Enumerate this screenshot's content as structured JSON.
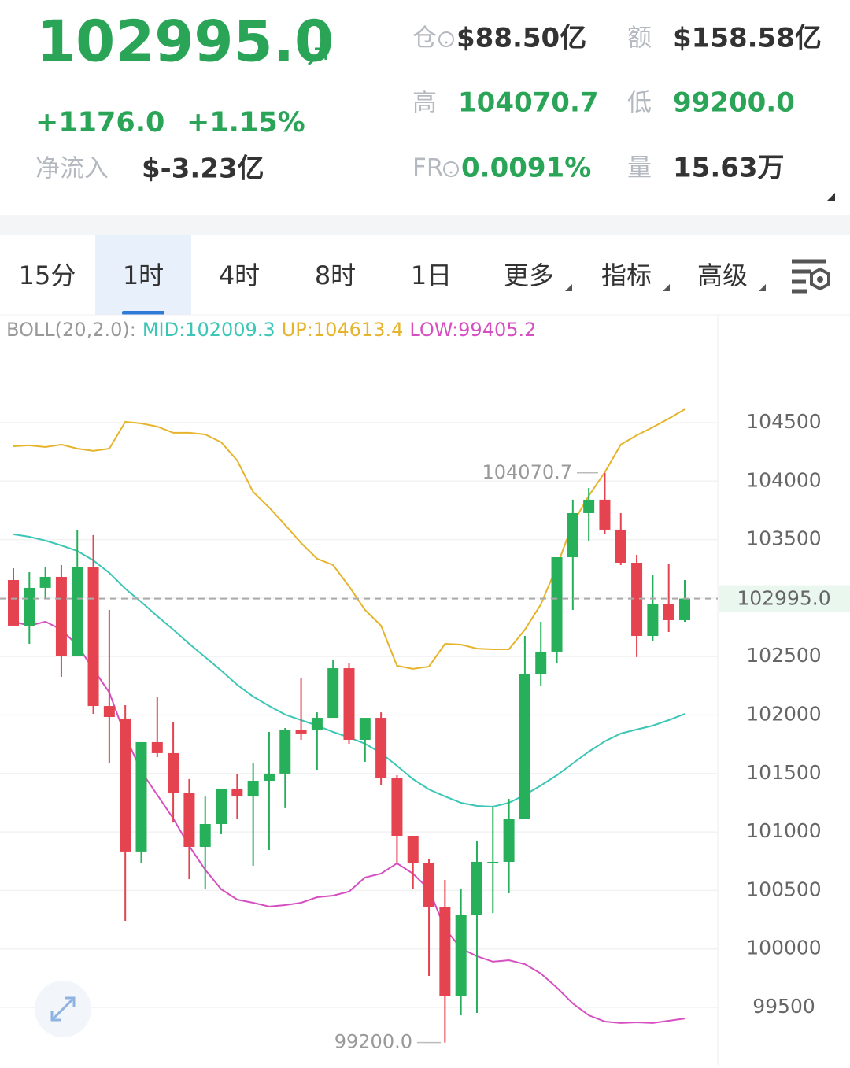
{
  "header": {
    "price": "102995.0",
    "change": "+1176.0",
    "change_pct": "+1.15%",
    "net_inflow_label": "净流入",
    "net_inflow": "$-3.23亿",
    "stats": [
      {
        "label": "仓",
        "value": "$88.50亿"
      },
      {
        "label": "额",
        "value": "$158.58亿"
      },
      {
        "label": "高",
        "value": "104070.7"
      },
      {
        "label": "低",
        "value": "99200.0"
      },
      {
        "label": "FR",
        "value": "0.0091%"
      },
      {
        "label": "量",
        "value": "15.63万"
      }
    ]
  },
  "tabs": [
    "15分",
    "1时",
    "4时",
    "8时",
    "1日",
    "更多",
    "指标",
    "高级"
  ],
  "selected_tab": 1,
  "chart_data": {
    "type": "candlestick",
    "up_color": "#27b05a",
    "down_color": "#e4434f",
    "ylim": [
      99050,
      105250
    ],
    "yticks": [
      104500,
      104000,
      103500,
      103000,
      102500,
      102000,
      101500,
      101000,
      100500,
      100000,
      99500
    ],
    "grid": true,
    "series": [
      {
        "open": [
          103154,
          102764,
          103087,
          103181,
          102508,
          103268,
          102077,
          101970,
          100833,
          101768,
          101674,
          101337,
          100873,
          101068,
          101371,
          101303,
          101438,
          101499,
          101869,
          101869,
          101976,
          102400,
          101788,
          101976,
          101465,
          100967,
          100732,
          100361,
          99601,
          100294,
          100732,
          100745,
          101115,
          102347,
          102542,
          103349,
          103726,
          103841,
          103585,
          103302,
          102676,
          102952,
          102811
        ],
        "close": [
          102764,
          103087,
          103181,
          102508,
          103268,
          102077,
          101983,
          100833,
          101768,
          101674,
          101337,
          100873,
          101068,
          101371,
          101303,
          101438,
          101499,
          101869,
          101842,
          101976,
          102400,
          101788,
          101976,
          101465,
          100967,
          100732,
          100361,
          99601,
          100294,
          100745,
          100745,
          101115,
          102347,
          102542,
          103349,
          103726,
          103841,
          103585,
          103302,
          102676,
          102952,
          102811,
          102995
        ],
        "high": [
          103255,
          103221,
          103268,
          103282,
          103578,
          103538,
          102898,
          102084,
          101768,
          102158,
          101936,
          101452,
          101303,
          101371,
          101492,
          101586,
          101855,
          101889,
          102313,
          102023,
          102474,
          102447,
          101976,
          102023,
          101485,
          100967,
          100770,
          100590,
          100510,
          100927,
          101216,
          101283,
          102676,
          102797,
          103349,
          103841,
          103941,
          104070.7,
          103726,
          103369,
          103201,
          103289,
          103154
        ],
        "low": [
          102764,
          102609,
          102999,
          102326,
          102508,
          102010,
          101586,
          100240,
          100732,
          101640,
          101081,
          100597,
          100510,
          100981,
          101115,
          100711,
          100846,
          101203,
          101788,
          101532,
          101976,
          101754,
          101600,
          101398,
          100732,
          100510,
          99769,
          99200,
          99433,
          99453,
          100307,
          100476,
          101115,
          102246,
          102441,
          102898,
          103484,
          103551,
          103282,
          102495,
          102629,
          102710,
          102797
        ]
      }
    ],
    "bollinger": {
      "label": "BOLL(20,2.0):",
      "lines": [
        {
          "legend": "MID:102009.3",
          "color": "#3cc6b6",
          "values": [
            103545,
            103524,
            103491,
            103450,
            103403,
            103322,
            103215,
            103080,
            102966,
            102845,
            102730,
            102609,
            102495,
            102380,
            102259,
            102158,
            102077,
            102004,
            101956,
            101909,
            101855,
            101808,
            101755,
            101674,
            101566,
            101452,
            101364,
            101304,
            101250,
            101223,
            101216,
            101250,
            101317,
            101398,
            101485,
            101586,
            101687,
            101775,
            101842,
            101876,
            101909,
            101956,
            102009.3
          ]
        },
        {
          "legend": "UP:104613.4",
          "color": "#e6b42c",
          "values": [
            104298,
            104305,
            104291,
            104312,
            104278,
            104258,
            104278,
            104507,
            104493,
            104466,
            104413,
            104413,
            104399,
            104332,
            104177,
            103908,
            103773,
            103625,
            103470,
            103336,
            103282,
            103100,
            102898,
            102764,
            102421,
            102394,
            102414,
            102609,
            102602,
            102568,
            102562,
            102562,
            102730,
            102946,
            103269,
            103639,
            103874,
            104076,
            104312,
            104392,
            104460,
            104534,
            104613.4
          ]
        },
        {
          "legend": "LOW:99405.2",
          "color": "#d64fc0",
          "values": [
            102798,
            102764,
            102798,
            102730,
            102596,
            102394,
            102192,
            101822,
            101519,
            101317,
            101115,
            100880,
            100678,
            100510,
            100422,
            100395,
            100362,
            100375,
            100395,
            100442,
            100456,
            100490,
            100611,
            100644,
            100732,
            100644,
            100510,
            100173,
            100005,
            99938,
            99891,
            99904,
            99870,
            99790,
            99669,
            99534,
            99433,
            99379,
            99366,
            99372,
            99366,
            99386,
            99405.2
          ]
        }
      ]
    },
    "annotations": [
      {
        "value": 104070.7,
        "label": "104070.7"
      },
      {
        "value": 99200,
        "label": "99200.0"
      }
    ],
    "current_price": {
      "value": 102995,
      "label": "102995.0"
    }
  }
}
